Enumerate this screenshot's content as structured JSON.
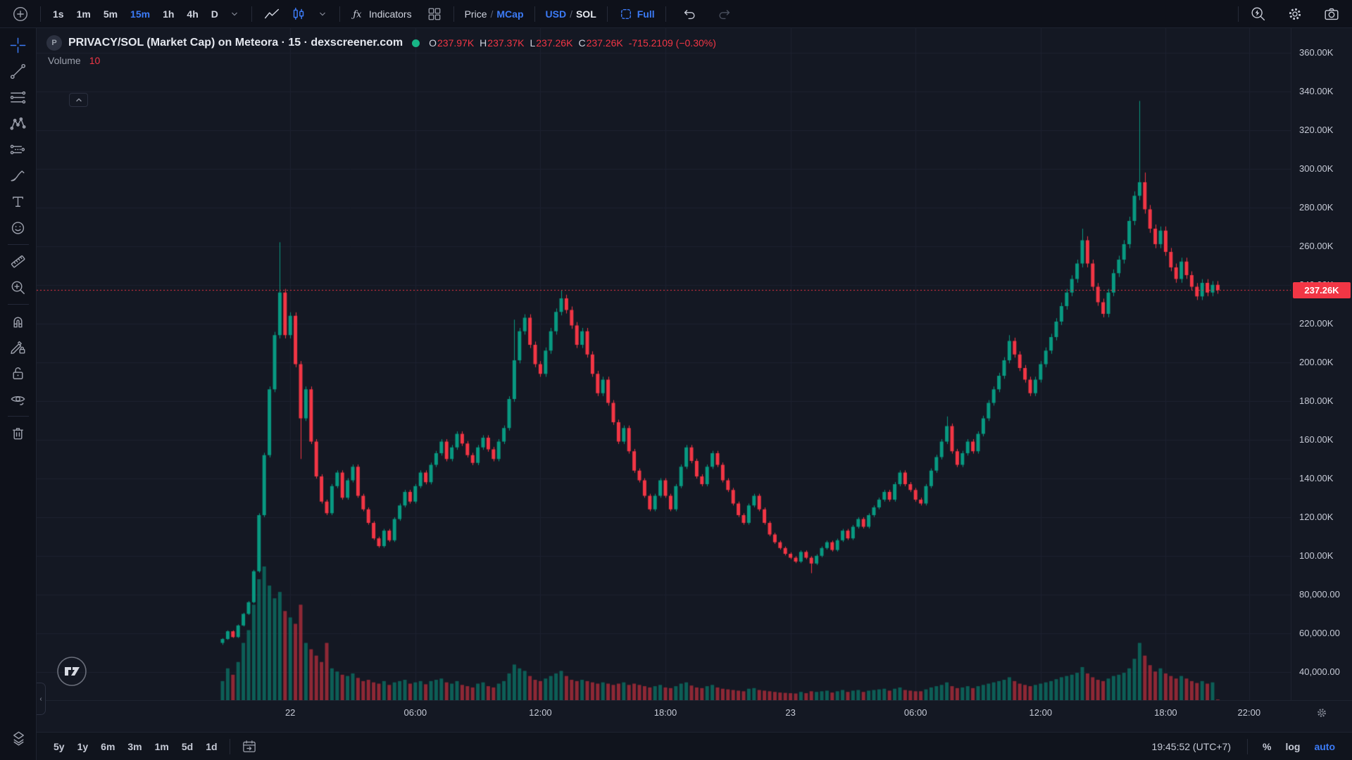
{
  "colors": {
    "background": "#141823",
    "panel": "#0e111a",
    "border": "#1e2330",
    "accent_blue": "#3c7bf6",
    "up_green": "#089981",
    "down_red": "#f23645",
    "text": "#cfd3de",
    "text_dim": "#8a8f9c"
  },
  "toolbar_top": {
    "timeframes": [
      {
        "label": "1s",
        "active": false
      },
      {
        "label": "1m",
        "active": false
      },
      {
        "label": "5m",
        "active": false
      },
      {
        "label": "15m",
        "active": true
      },
      {
        "label": "1h",
        "active": false
      },
      {
        "label": "4h",
        "active": false
      },
      {
        "label": "D",
        "active": false
      }
    ],
    "indicators_label": "Indicators",
    "price_mcap": {
      "left": "Price",
      "sep": "/",
      "right": "MCap"
    },
    "usd_sol": {
      "left": "USD",
      "sep": "/",
      "right": "SOL"
    },
    "full_label": "Full"
  },
  "left_toolbar": {
    "tools": [
      {
        "name": "crosshair-tool",
        "icon": "crosshair",
        "active": true
      },
      {
        "name": "trend-line-tool",
        "icon": "trend"
      },
      {
        "name": "fib-retracement-tool",
        "icon": "hlines"
      },
      {
        "name": "xabcd-pattern-tool",
        "icon": "xabcd"
      },
      {
        "name": "projection-tool",
        "icon": "longshort"
      },
      {
        "name": "brush-tool",
        "icon": "brush"
      },
      {
        "name": "text-tool",
        "icon": "text"
      },
      {
        "name": "emoji-tool",
        "icon": "emoji"
      },
      {
        "divider": true
      },
      {
        "name": "ruler-tool",
        "icon": "ruler"
      },
      {
        "name": "zoom-in-tool",
        "icon": "zoom"
      },
      {
        "divider": true
      },
      {
        "name": "magnet-tool",
        "icon": "magnet"
      },
      {
        "name": "drawing-lock-tool",
        "icon": "pencilLock"
      },
      {
        "name": "lock-all-tool",
        "icon": "lockOpen"
      },
      {
        "name": "hide-drawings-tool",
        "icon": "eye"
      },
      {
        "divider": true
      },
      {
        "name": "remove-drawings-tool",
        "icon": "trash"
      }
    ]
  },
  "legend": {
    "symbol_badge": "P",
    "title": "PRIVACY/SOL (Market Cap) on Meteora · 15 · dexscreener.com",
    "ohlc": {
      "o_label": "O",
      "o": "237.97K",
      "h_label": "H",
      "h": "237.37K",
      "l_label": "L",
      "l": "237.26K",
      "c_label": "C",
      "c": "237.26K",
      "change": "-715.2109 (−0.30%)"
    },
    "volume_label": "Volume",
    "volume_value": "10"
  },
  "price_axis": {
    "ticks": [
      {
        "v": 360,
        "label": "360.00K"
      },
      {
        "v": 340,
        "label": "340.00K"
      },
      {
        "v": 320,
        "label": "320.00K"
      },
      {
        "v": 300,
        "label": "300.00K"
      },
      {
        "v": 280,
        "label": "280.00K"
      },
      {
        "v": 260,
        "label": "260.00K"
      },
      {
        "v": 240,
        "label": "240.00K"
      },
      {
        "v": 220,
        "label": "220.00K"
      },
      {
        "v": 200,
        "label": "200.00K"
      },
      {
        "v": 180,
        "label": "180.00K"
      },
      {
        "v": 160,
        "label": "160.00K"
      },
      {
        "v": 140,
        "label": "140.00K"
      },
      {
        "v": 120,
        "label": "120.00K"
      },
      {
        "v": 100,
        "label": "100.00K"
      },
      {
        "v": 80,
        "label": "80,000.00"
      },
      {
        "v": 60,
        "label": "60,000.00"
      },
      {
        "v": 40,
        "label": "40,000.00"
      }
    ],
    "last_price": {
      "v": 237.26,
      "label": "237.26K"
    }
  },
  "time_axis": {
    "labels": [
      {
        "text": "22",
        "index": 13
      },
      {
        "text": "06:00",
        "index": 37
      },
      {
        "text": "12:00",
        "index": 61
      },
      {
        "text": "18:00",
        "index": 85
      },
      {
        "text": "23",
        "index": 109
      },
      {
        "text": "06:00",
        "index": 133
      },
      {
        "text": "12:00",
        "index": 157
      },
      {
        "text": "18:00",
        "index": 181
      },
      {
        "text": "22:00",
        "index": 197
      }
    ]
  },
  "toolbar_bottom": {
    "ranges": [
      "5y",
      "1y",
      "6m",
      "3m",
      "1m",
      "5d",
      "1d"
    ],
    "clock": "19:45:52 (UTC+7)",
    "percent_label": "%",
    "log_label": "log",
    "auto_label": "auto"
  },
  "chart_data": {
    "type": "candlestick",
    "title": "PRIVACY/SOL (Market Cap) on Meteora · 15 · dexscreener.com",
    "interval": "15m",
    "unit": "thousands (K) of USD market cap",
    "ylim": [
      25.4,
      372.6
    ],
    "grid": true,
    "current": {
      "open": "237.97K",
      "high": "237.37K",
      "low": "237.26K",
      "close": "237.26K",
      "change": "-715.2109 (−0.30%)",
      "volume": 10
    },
    "last_price": 237.26,
    "open_first": 55,
    "closes": [
      57,
      61,
      58,
      64,
      70,
      76,
      92,
      121,
      152,
      186,
      214,
      236,
      214,
      224,
      199,
      171,
      186,
      159,
      141,
      128,
      122,
      136,
      143,
      130,
      139,
      146,
      131,
      124,
      117,
      109,
      105,
      113,
      108,
      119,
      126,
      133,
      128,
      136,
      143,
      138,
      147,
      153,
      159,
      150,
      156,
      163,
      158,
      152,
      148,
      156,
      161,
      155,
      150,
      159,
      166,
      181,
      201,
      216,
      223,
      209,
      199,
      194,
      206,
      216,
      226,
      233,
      227,
      219,
      209,
      216,
      204,
      194,
      184,
      191,
      179,
      169,
      159,
      166,
      154,
      144,
      139,
      131,
      124,
      131,
      139,
      131,
      124,
      136,
      146,
      156,
      149,
      141,
      137,
      146,
      153,
      147,
      139,
      134,
      127,
      121,
      117,
      126,
      131,
      124,
      117,
      111,
      107,
      104,
      101,
      99,
      97,
      102,
      99,
      96,
      100,
      104,
      107,
      103,
      108,
      113,
      109,
      115,
      119,
      115,
      121,
      125,
      129,
      133,
      129,
      137,
      143,
      137,
      134,
      129,
      127,
      136,
      144,
      151,
      159,
      167,
      154,
      147,
      153,
      159,
      154,
      163,
      171,
      179,
      186,
      193,
      201,
      211,
      204,
      197,
      191,
      184,
      191,
      199,
      206,
      213,
      221,
      229,
      236,
      243,
      251,
      263,
      251,
      239,
      231,
      225,
      236,
      246,
      253,
      261,
      273,
      286,
      293,
      279,
      269,
      261,
      268,
      257,
      249,
      243,
      252,
      245,
      239,
      234,
      241,
      236,
      240,
      237.26
    ],
    "volumes": [
      300,
      500,
      400,
      600,
      900,
      1100,
      1500,
      1900,
      2100,
      1800,
      1600,
      1700,
      1400,
      1300,
      1200,
      1500,
      900,
      800,
      700,
      600,
      900,
      500,
      450,
      400,
      380,
      420,
      350,
      300,
      320,
      280,
      260,
      300,
      240,
      280,
      300,
      320,
      260,
      280,
      300,
      250,
      300,
      320,
      340,
      280,
      260,
      300,
      240,
      220,
      200,
      260,
      280,
      220,
      200,
      260,
      300,
      420,
      560,
      500,
      460,
      380,
      320,
      300,
      340,
      380,
      420,
      460,
      380,
      320,
      300,
      320,
      300,
      280,
      260,
      280,
      260,
      240,
      260,
      280,
      240,
      260,
      240,
      220,
      200,
      220,
      240,
      200,
      190,
      220,
      260,
      280,
      230,
      200,
      190,
      220,
      240,
      200,
      180,
      170,
      160,
      150,
      140,
      180,
      190,
      160,
      150,
      140,
      130,
      120,
      115,
      110,
      105,
      130,
      110,
      140,
      130,
      140,
      150,
      120,
      140,
      160,
      130,
      150,
      160,
      130,
      150,
      160,
      170,
      180,
      150,
      180,
      200,
      160,
      150,
      140,
      140,
      170,
      200,
      220,
      240,
      280,
      220,
      190,
      200,
      220,
      190,
      220,
      240,
      260,
      280,
      300,
      320,
      360,
      300,
      260,
      240,
      220,
      240,
      260,
      280,
      300,
      330,
      360,
      380,
      400,
      430,
      520,
      420,
      360,
      320,
      300,
      340,
      380,
      400,
      430,
      500,
      650,
      900,
      700,
      550,
      450,
      500,
      420,
      380,
      340,
      380,
      340,
      300,
      270,
      300,
      260,
      280,
      10
    ],
    "wick_overrides": {
      "0": {
        "lo": 54
      },
      "11": {
        "hi": 262
      },
      "15": {
        "lo": 150
      },
      "56": {
        "hi": 222
      },
      "65": {
        "hi": 237
      },
      "113": {
        "lo": 91
      },
      "139": {
        "hi": 172
      },
      "151": {
        "hi": 214
      },
      "165": {
        "hi": 269
      },
      "176": {
        "hi": 335
      },
      "177": {
        "hi": 298
      }
    },
    "volume_scale_max": 2100
  }
}
